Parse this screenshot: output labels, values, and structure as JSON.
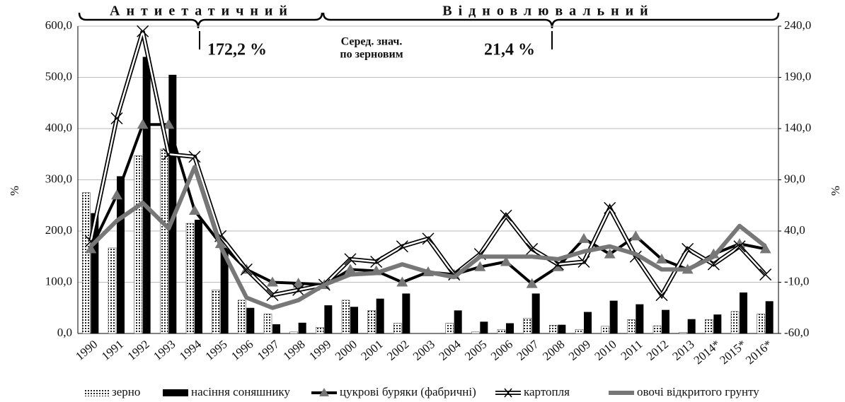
{
  "chart_data": {
    "type": "combo",
    "categories": [
      "1990",
      "1991",
      "1992",
      "1993",
      "1994",
      "1995",
      "1996",
      "1997",
      "1998",
      "1999",
      "2000",
      "2001",
      "2002",
      "2003",
      "2004",
      "2005",
      "2006",
      "2007",
      "2008",
      "2009",
      "2010",
      "2011",
      "2012",
      "2013",
      "2014*",
      "2015*",
      "2016*"
    ],
    "ylabel": "%",
    "y2label": "%",
    "ylim": [
      0,
      600
    ],
    "yticks": [
      {
        "value": 0,
        "label": "0,0"
      },
      {
        "value": 100,
        "label": "100,0"
      },
      {
        "value": 200,
        "label": "200,0"
      },
      {
        "value": 300,
        "label": "300,0"
      },
      {
        "value": 400,
        "label": "400,0"
      },
      {
        "value": 500,
        "label": "500,0"
      },
      {
        "value": 600,
        "label": "600,0"
      }
    ],
    "y2lim": [
      -60,
      240
    ],
    "y2ticks": [
      {
        "value": -60,
        "label": "-60,0"
      },
      {
        "value": -10,
        "label": "-10,0"
      },
      {
        "value": 40,
        "label": "40,0"
      },
      {
        "value": 90,
        "label": "90,0"
      },
      {
        "value": 140,
        "label": "140,0"
      },
      {
        "value": 190,
        "label": "190,0"
      },
      {
        "value": 240,
        "label": "240,0"
      }
    ],
    "grid": true,
    "series": [
      {
        "name": "зерно",
        "type": "bar",
        "color": "#333333",
        "pattern": "dots",
        "values": [
          275,
          167,
          347,
          360,
          215,
          85,
          65,
          38,
          3,
          12,
          65,
          45,
          20,
          0,
          20,
          3,
          8,
          30,
          16,
          8,
          14,
          27,
          15,
          2,
          27,
          43,
          38
        ]
      },
      {
        "name": "насіння соняшнику",
        "type": "bar",
        "color": "#000000",
        "values": [
          235,
          307,
          540,
          505,
          222,
          165,
          50,
          18,
          21,
          55,
          52,
          68,
          78,
          0,
          45,
          23,
          20,
          78,
          17,
          42,
          64,
          57,
          46,
          28,
          37,
          80,
          63
        ]
      },
      {
        "name": "цукрові буряки (фабричні)",
        "type": "line",
        "color": "#000000",
        "marker": "triangle",
        "values": [
          165,
          270,
          408,
          408,
          240,
          175,
          125,
          100,
          98,
          95,
          125,
          122,
          100,
          120,
          115,
          130,
          140,
          97,
          130,
          185,
          155,
          190,
          145,
          125,
          155,
          175,
          165
        ]
      },
      {
        "name": "картопля",
        "type": "line",
        "color": "#000000",
        "marker": "x",
        "double": true,
        "values": [
          180,
          420,
          590,
          350,
          345,
          190,
          125,
          75,
          85,
          95,
          145,
          140,
          170,
          185,
          115,
          155,
          230,
          165,
          135,
          140,
          245,
          150,
          75,
          165,
          135,
          170,
          115
        ]
      },
      {
        "name": "овочі відкритого грунту",
        "type": "line",
        "color": "#777777",
        "values": [
          170,
          220,
          255,
          205,
          325,
          170,
          70,
          50,
          65,
          95,
          115,
          118,
          135,
          120,
          110,
          150,
          150,
          150,
          145,
          160,
          170,
          155,
          125,
          125,
          150,
          210,
          170
        ]
      }
    ],
    "annotations": [
      "Антиетатичний",
      "Відновлювальний",
      "172,2 %",
      "Серед. знач.",
      "по зерновим",
      "21,4 %"
    ]
  }
}
